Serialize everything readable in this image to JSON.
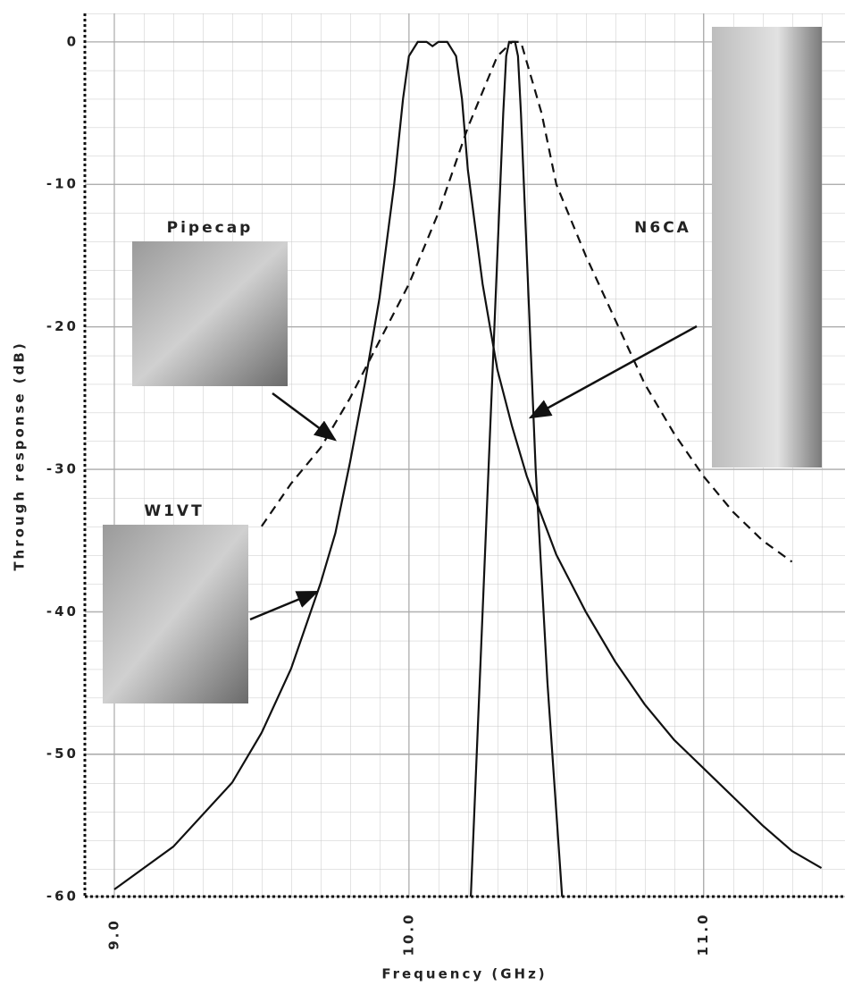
{
  "chart_data": {
    "type": "line",
    "xlabel": "Frequency (GHz)",
    "ylabel": "Through response (dB)",
    "xlim": [
      8.9,
      11.48
    ],
    "ylim": [
      -60,
      2
    ],
    "xticks": [
      {
        "value": 9,
        "label": "9.0"
      },
      {
        "value": 10,
        "label": "10.0"
      },
      {
        "value": 11,
        "label": "11.0"
      }
    ],
    "yticks": [
      0,
      -10,
      -20,
      -30,
      -40,
      -50,
      -60
    ],
    "grid": true,
    "series": [
      {
        "name": "W1VT",
        "color": "#111111",
        "line_style": "solid",
        "x": [
          9.0,
          9.2,
          9.4,
          9.5,
          9.6,
          9.7,
          9.75,
          9.8,
          9.85,
          9.9,
          9.95,
          9.98,
          10.0,
          10.03,
          10.06,
          10.08,
          10.1,
          10.13,
          10.16,
          10.18,
          10.2,
          10.25,
          10.3,
          10.35,
          10.4,
          10.5,
          10.6,
          10.7,
          10.8,
          10.9,
          11.0,
          11.1,
          11.2,
          11.3,
          11.4
        ],
        "values": [
          -59.5,
          -56.5,
          -52,
          -48.5,
          -44,
          -38,
          -34.5,
          -29.5,
          -24,
          -18,
          -10,
          -4,
          -1,
          0,
          0,
          -0.3,
          0,
          0,
          -1,
          -4,
          -9,
          -17,
          -23,
          -27,
          -30.5,
          -36,
          -40,
          -43.5,
          -46.5,
          -49,
          -51,
          -53,
          -55,
          -56.8,
          -58
        ]
      },
      {
        "name": "N6CA",
        "color": "#111111",
        "line_style": "solid",
        "x": [
          10.21,
          10.24,
          10.27,
          10.3,
          10.32,
          10.33,
          10.34,
          10.36,
          10.37,
          10.38,
          10.4,
          10.43,
          10.47,
          10.52
        ],
        "values": [
          -60,
          -45,
          -30,
          -15,
          -5,
          -1,
          0,
          0,
          -1,
          -5,
          -15,
          -30,
          -45,
          -60
        ]
      },
      {
        "name": "Pipecap",
        "color": "#111111",
        "line_style": "dashed",
        "x": [
          9.5,
          9.6,
          9.7,
          9.8,
          9.9,
          10.0,
          10.1,
          10.2,
          10.3,
          10.35,
          10.38,
          10.45,
          10.5,
          10.6,
          10.7,
          10.8,
          10.9,
          11.0,
          11.1,
          11.2,
          11.3
        ],
        "values": [
          -34,
          -31,
          -28.5,
          -25,
          -21,
          -17,
          -12,
          -6,
          -1,
          0,
          0,
          -5,
          -10,
          -15,
          -19.5,
          -24,
          -27.5,
          -30.5,
          -33,
          -35,
          -36.5
        ]
      }
    ]
  }
}
